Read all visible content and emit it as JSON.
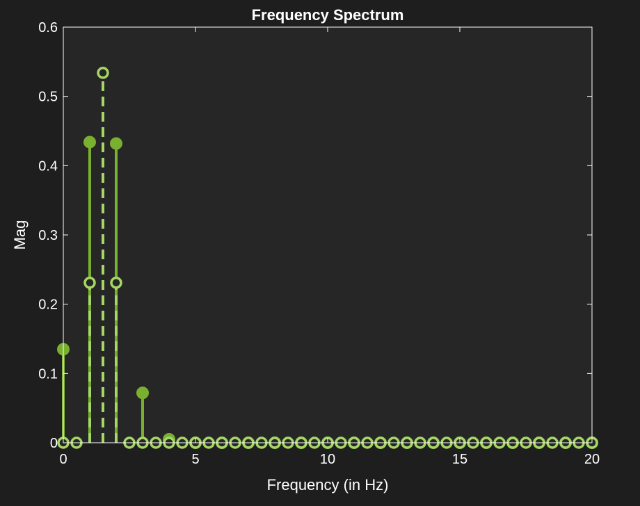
{
  "chart_data": {
    "type": "scatter",
    "plot_style": "stem",
    "title": "Frequency Spectrum",
    "xlabel": "Frequency (in Hz)",
    "ylabel": "Mag",
    "xlim": [
      0,
      20
    ],
    "ylim": [
      0,
      0.6
    ],
    "xticks": [
      0,
      5,
      10,
      15,
      20
    ],
    "yticks": [
      0,
      0.1,
      0.2,
      0.3,
      0.4,
      0.5,
      0.6
    ],
    "xtick_labels": [
      "0",
      "5",
      "10",
      "15",
      "20"
    ],
    "ytick_labels": [
      "0",
      "0.1",
      "0.2",
      "0.3",
      "0.4",
      "0.5",
      "0.6"
    ],
    "grid": false,
    "legend": "none",
    "series": [
      {
        "marker": "filled-circle",
        "line_style": "solid",
        "color": "#7ab02f",
        "x": [
          0,
          1,
          2,
          3,
          4,
          5,
          6,
          7,
          8,
          9,
          10,
          11,
          12,
          13,
          14,
          15,
          16,
          17,
          18,
          19,
          20
        ],
        "values": [
          0.135,
          0.434,
          0.432,
          0.072,
          0.005,
          0,
          0,
          0,
          0,
          0,
          0,
          0,
          0,
          0,
          0,
          0,
          0,
          0,
          0,
          0,
          0
        ]
      },
      {
        "marker": "open-circle",
        "line_style": "dashed",
        "color": "#a6d665",
        "x": [
          0,
          0.5,
          1,
          1.5,
          2,
          2.5,
          3,
          3.5,
          4,
          4.5,
          5,
          5.5,
          6,
          6.5,
          7,
          7.5,
          8,
          8.5,
          9,
          9.5,
          10,
          10.5,
          11,
          11.5,
          12,
          12.5,
          13,
          13.5,
          14,
          14.5,
          15,
          15.5,
          16,
          16.5,
          17,
          17.5,
          18,
          18.5,
          19,
          19.5,
          20
        ],
        "values": [
          0,
          0,
          0.231,
          0.534,
          0.231,
          0,
          0,
          0,
          0,
          0,
          0,
          0,
          0,
          0,
          0,
          0,
          0,
          0,
          0,
          0,
          0,
          0,
          0,
          0,
          0,
          0,
          0,
          0,
          0,
          0,
          0,
          0,
          0,
          0,
          0,
          0,
          0,
          0,
          0,
          0,
          0
        ]
      }
    ],
    "colors": {
      "figure_background": "#1e1e1e",
      "axes_background": "#262626",
      "axes_line": "#ffffff",
      "text": "#ffffff"
    }
  }
}
